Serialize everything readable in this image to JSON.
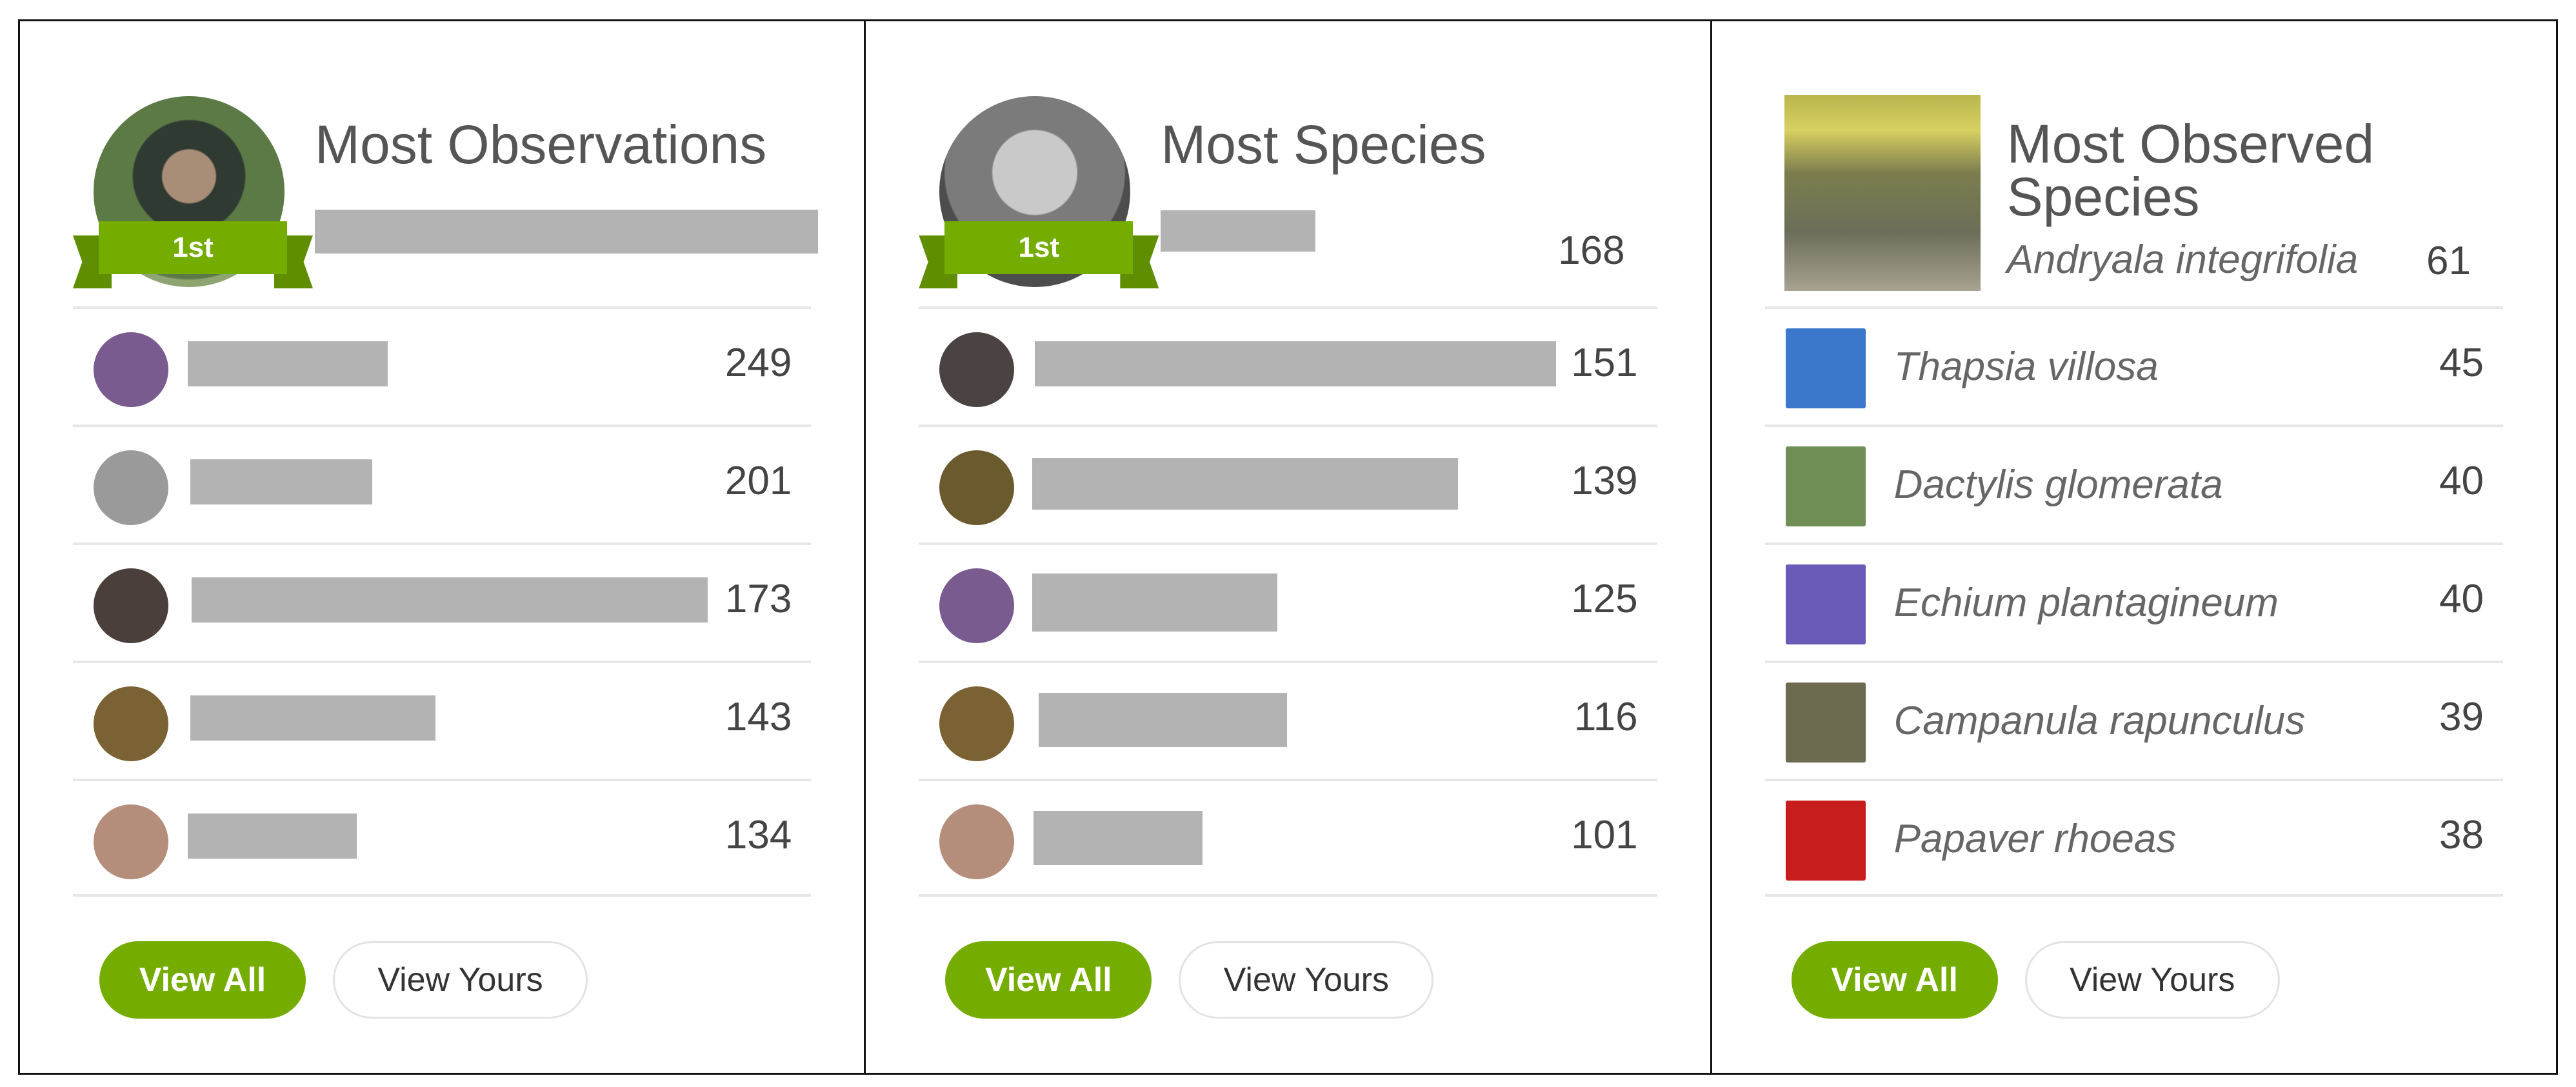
{
  "panels": {
    "observations": {
      "title": "Most Observations",
      "leader": {
        "badge": "1st"
      },
      "rows": [
        {
          "count": "249",
          "avatar_color": "#7a5b8f"
        },
        {
          "count": "201",
          "avatar_color": "#9a9a9a"
        },
        {
          "count": "173",
          "avatar_color": "#4a3f3a"
        },
        {
          "count": "143",
          "avatar_color": "#7a6234"
        },
        {
          "count": "134",
          "avatar_color": "#b58d7b"
        }
      ],
      "buttons": {
        "view_all": "View All",
        "view_yours": "View Yours"
      }
    },
    "species": {
      "title": "Most Species",
      "leader": {
        "badge": "1st",
        "count": "168"
      },
      "rows": [
        {
          "count": "151",
          "avatar_color": "#4b4242"
        },
        {
          "count": "139",
          "avatar_color": "#6c5a2f"
        },
        {
          "count": "125",
          "avatar_color": "#7a5b8f"
        },
        {
          "count": "116",
          "avatar_color": "#7a6234"
        },
        {
          "count": "101",
          "avatar_color": "#b58d7b"
        }
      ],
      "buttons": {
        "view_all": "View All",
        "view_yours": "View Yours"
      }
    },
    "observed_species": {
      "title": "Most Observed Species",
      "leader": {
        "name": "Andryala integrifolia",
        "count": "61"
      },
      "rows": [
        {
          "name": "Thapsia villosa",
          "count": "45",
          "thumb_color": "#3b78cc"
        },
        {
          "name": "Dactylis glomerata",
          "count": "40",
          "thumb_color": "#6f8f56"
        },
        {
          "name": "Echium plantagineum",
          "count": "40",
          "thumb_color": "#6a5bb8"
        },
        {
          "name": "Campanula rapunculus",
          "count": "39",
          "thumb_color": "#6c6a4f"
        },
        {
          "name": "Papaver rhoeas",
          "count": "38",
          "thumb_color": "#c81d1d"
        }
      ],
      "buttons": {
        "view_all": "View All",
        "view_yours": "View Yours"
      }
    }
  },
  "colors": {
    "accent": "#74ac00",
    "placeholder": "#b3b3b3",
    "divider": "#e6e6e6"
  }
}
